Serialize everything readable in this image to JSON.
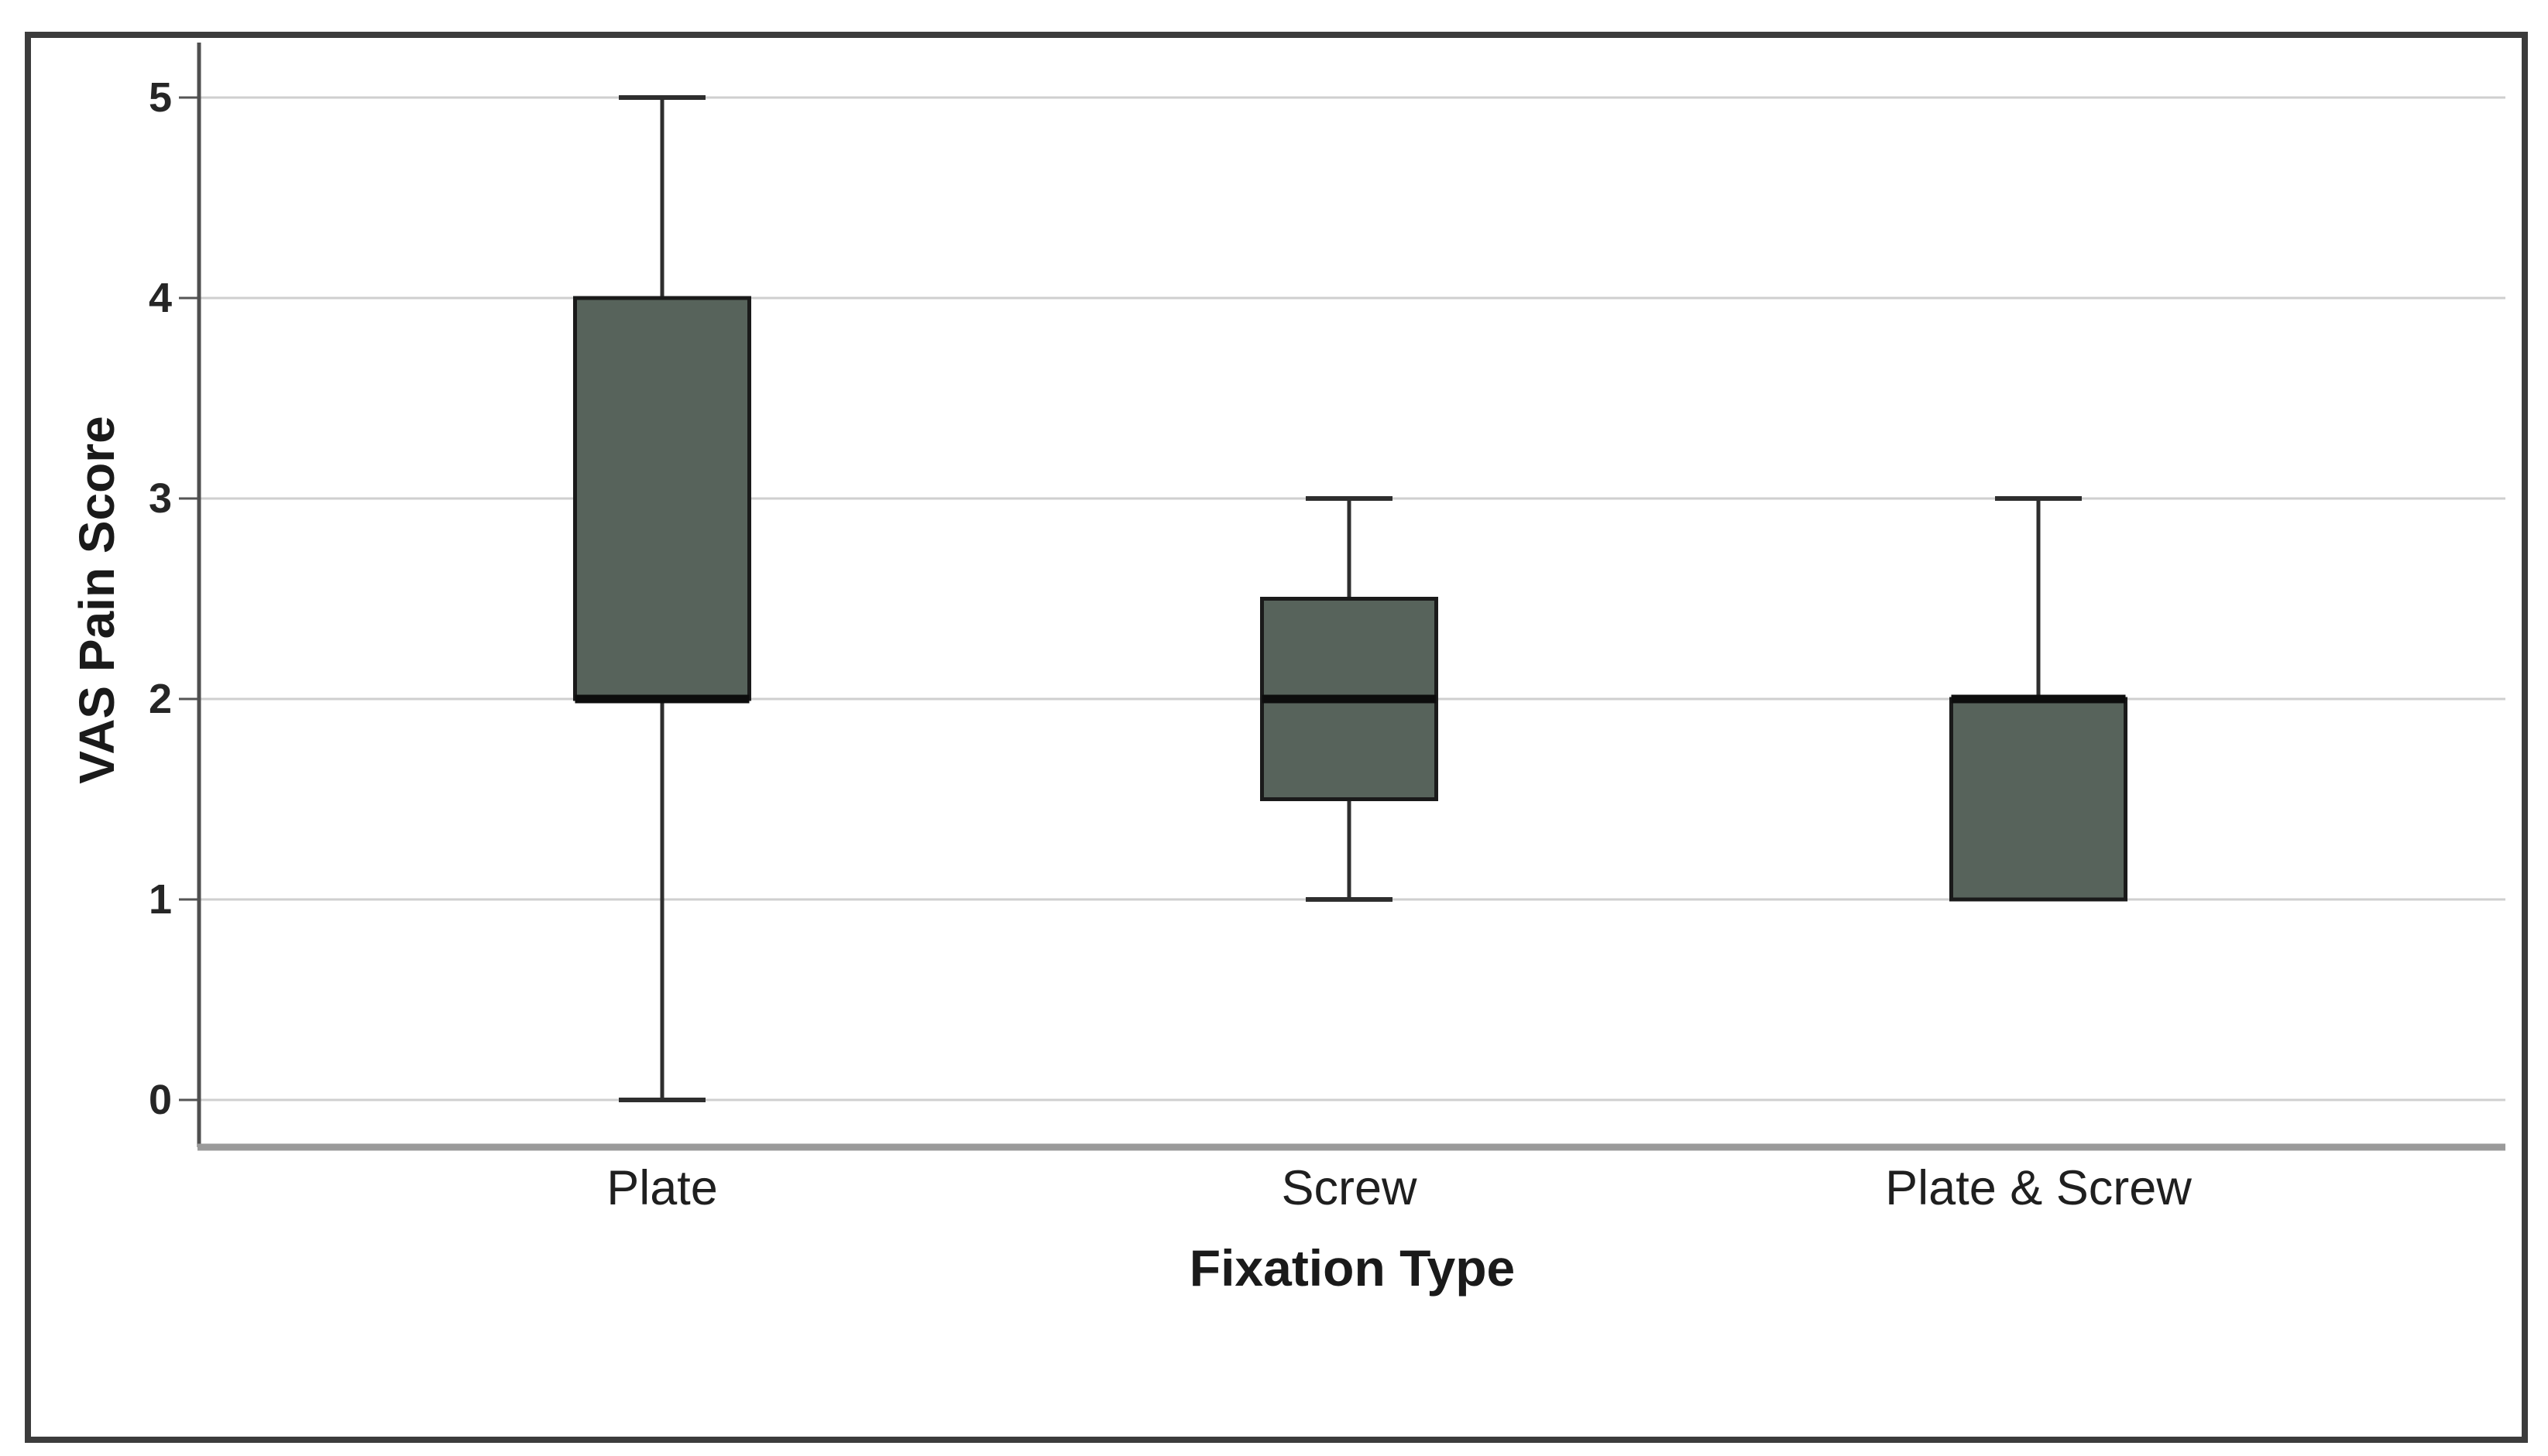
{
  "figure": {
    "background": "#ffffff",
    "frame_border_color": "#3c3c3c"
  },
  "chart_data": {
    "type": "boxplot",
    "title": "",
    "xlabel": "Fixation Type",
    "ylabel": "VAS Pain Score",
    "categories": [
      "Plate",
      "Screw",
      "Plate & Screw"
    ],
    "ytick_labels": [
      "0",
      "1",
      "2",
      "3",
      "4",
      "5"
    ],
    "ylim": [
      0,
      5
    ],
    "grid": true,
    "legend": "none",
    "colors": {
      "box_fill": "#57635b",
      "box_border": "#1a1a1a",
      "median": "#0d0d0d",
      "whisker": "#2e2e2e",
      "gridline": "#cfcfcf",
      "y_axis": "#4f4f4f",
      "x_axis_baseline": "#9a9a9a",
      "text": "#1a1a1a"
    },
    "series": [
      {
        "category": "Plate",
        "min": 0,
        "q1": 2,
        "median": 2,
        "q3": 4,
        "max": 5
      },
      {
        "category": "Screw",
        "min": 1,
        "q1": 1.5,
        "median": 2,
        "q3": 2.5,
        "max": 3
      },
      {
        "category": "Plate & Screw",
        "min": 1,
        "q1": 1,
        "median": 2,
        "q3": 2,
        "max": 3
      }
    ]
  }
}
